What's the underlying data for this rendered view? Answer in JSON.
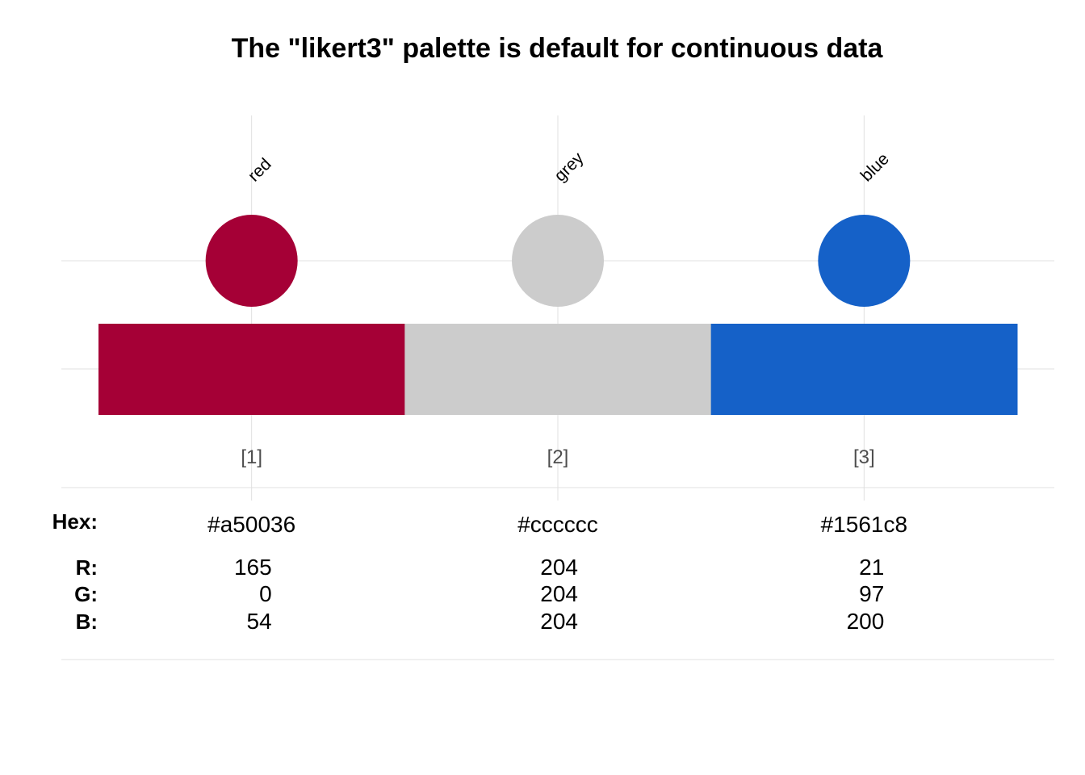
{
  "chart_data": {
    "type": "palette",
    "title": "The \"likert3\" palette is default for continuous data",
    "swatches": [
      {
        "index": "[1]",
        "name": "red",
        "hex": "#a50036",
        "r": 165,
        "g": 0,
        "b": 54
      },
      {
        "index": "[2]",
        "name": "grey",
        "hex": "#cccccc",
        "r": 204,
        "g": 204,
        "b": 204
      },
      {
        "index": "[3]",
        "name": "blue",
        "hex": "#1561c8",
        "r": 21,
        "g": 97,
        "b": 200
      }
    ],
    "row_labels": {
      "hex": "Hex:",
      "r": "R:",
      "g": "G:",
      "b": "B:"
    },
    "grid": true
  }
}
